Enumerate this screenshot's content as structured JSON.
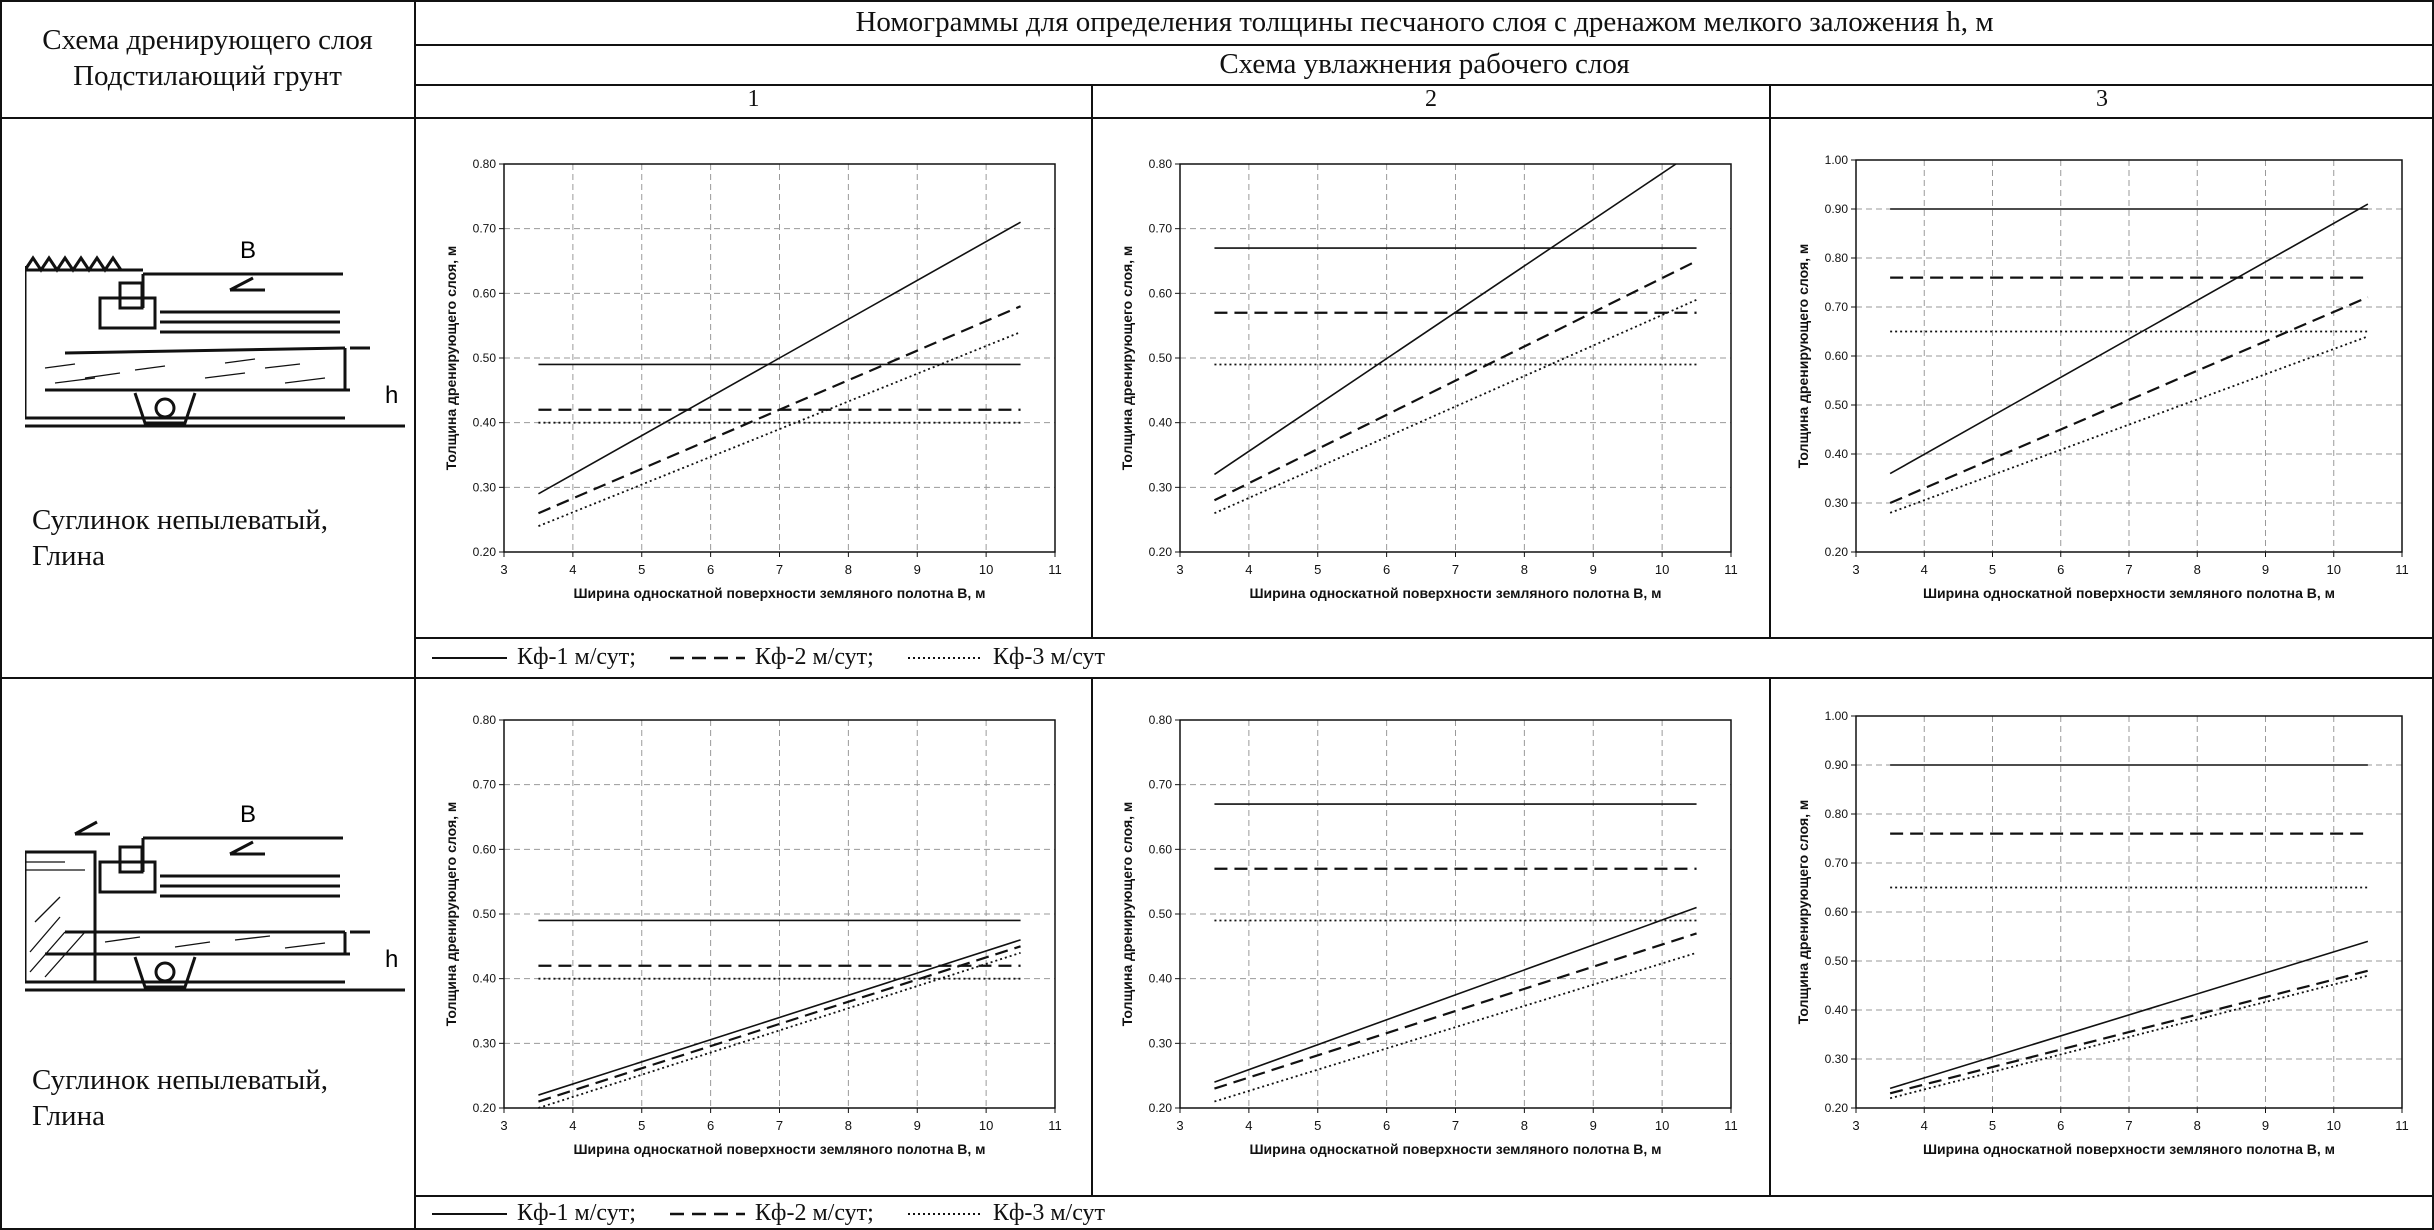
{
  "header": {
    "col_left": [
      "Схема дренирующего слоя",
      "Подстилающий грунт"
    ],
    "title": "Номограммы для определения толщины песчаного слоя с дренажом мелкого заложения h, м",
    "subtitle": "Схема увлажнения рабочего слоя",
    "schemes": [
      "1",
      "2",
      "3"
    ]
  },
  "rows": [
    {
      "soil_lines": [
        "Суглинок непылеватый,",
        "Глина"
      ],
      "diagram": {
        "label_b": "B",
        "label_h": "h"
      },
      "legend": [
        "Кф-1 м/сут;",
        "Кф-2 м/сут;",
        "Кф-3 м/сут"
      ]
    },
    {
      "soil_lines": [
        "Суглинок непылеватый,",
        "Глина"
      ],
      "diagram": {
        "label_b": "B",
        "label_h": "h"
      },
      "legend": [
        "Кф-1 м/сут;",
        "Кф-2 м/сут;",
        "Кф-3 м/сут"
      ]
    }
  ],
  "chart_data": [
    {
      "type": "line",
      "ylabel": "Толщина дренирующего слоя, м",
      "xlabel": "Ширина односкатной поверхности земляного полотна B, м",
      "xlim": [
        3,
        11
      ],
      "ylim": [
        0.2,
        0.8
      ],
      "xticks": [
        "3",
        "4",
        "5",
        "6",
        "7",
        "8",
        "9",
        "10",
        "11"
      ],
      "yticks": [
        "0.20",
        "0.30",
        "0.40",
        "0.50",
        "0.60",
        "0.70",
        "0.80"
      ],
      "grid": true,
      "series": [
        {
          "style": "solid",
          "points": [
            [
              3.5,
              0.49
            ],
            [
              10.5,
              0.49
            ]
          ]
        },
        {
          "style": "dashed",
          "points": [
            [
              3.5,
              0.42
            ],
            [
              10.5,
              0.42
            ]
          ]
        },
        {
          "style": "dotted",
          "points": [
            [
              3.5,
              0.4
            ],
            [
              10.5,
              0.4
            ]
          ]
        },
        {
          "style": "solid",
          "points": [
            [
              3.5,
              0.29
            ],
            [
              10.5,
              0.71
            ]
          ]
        },
        {
          "style": "dashed",
          "points": [
            [
              3.5,
              0.26
            ],
            [
              10.5,
              0.58
            ]
          ]
        },
        {
          "style": "dotted",
          "points": [
            [
              3.5,
              0.24
            ],
            [
              10.5,
              0.54
            ]
          ]
        }
      ]
    },
    {
      "type": "line",
      "ylabel": "Толщина дренирующего слоя, м",
      "xlabel": "Ширина односкатной поверхности земляного полотна B, м",
      "xlim": [
        3,
        11
      ],
      "ylim": [
        0.2,
        0.8
      ],
      "xticks": [
        "3",
        "4",
        "5",
        "6",
        "7",
        "8",
        "9",
        "10",
        "11"
      ],
      "yticks": [
        "0.20",
        "0.30",
        "0.40",
        "0.50",
        "0.60",
        "0.70",
        "0.80"
      ],
      "grid": true,
      "series": [
        {
          "style": "solid",
          "points": [
            [
              3.5,
              0.67
            ],
            [
              10.5,
              0.67
            ]
          ]
        },
        {
          "style": "dashed",
          "points": [
            [
              3.5,
              0.57
            ],
            [
              10.5,
              0.57
            ]
          ]
        },
        {
          "style": "dotted",
          "points": [
            [
              3.5,
              0.49
            ],
            [
              10.5,
              0.49
            ]
          ]
        },
        {
          "style": "solid",
          "points": [
            [
              3.5,
              0.32
            ],
            [
              10.2,
              0.8
            ]
          ]
        },
        {
          "style": "dashed",
          "points": [
            [
              3.5,
              0.28
            ],
            [
              10.5,
              0.65
            ]
          ]
        },
        {
          "style": "dotted",
          "points": [
            [
              3.5,
              0.26
            ],
            [
              10.5,
              0.59
            ]
          ]
        }
      ]
    },
    {
      "type": "line",
      "ylabel": "Толщина дренирующего слоя, м",
      "xlabel": "Ширина односкатной поверхности земляного полотна B, м",
      "xlim": [
        3,
        11
      ],
      "ylim": [
        0.2,
        1.0
      ],
      "xticks": [
        "3",
        "4",
        "5",
        "6",
        "7",
        "8",
        "9",
        "10",
        "11"
      ],
      "yticks": [
        "0.20",
        "0.30",
        "0.40",
        "0.50",
        "0.60",
        "0.70",
        "0.80",
        "0.90",
        "1.00"
      ],
      "grid": true,
      "series": [
        {
          "style": "solid",
          "points": [
            [
              3.5,
              0.9
            ],
            [
              10.5,
              0.9
            ]
          ]
        },
        {
          "style": "dashed",
          "points": [
            [
              3.5,
              0.76
            ],
            [
              10.5,
              0.76
            ]
          ]
        },
        {
          "style": "dotted",
          "points": [
            [
              3.5,
              0.65
            ],
            [
              10.5,
              0.65
            ]
          ]
        },
        {
          "style": "solid",
          "points": [
            [
              3.5,
              0.36
            ],
            [
              10.5,
              0.91
            ]
          ]
        },
        {
          "style": "dashed",
          "points": [
            [
              3.5,
              0.3
            ],
            [
              10.5,
              0.72
            ]
          ]
        },
        {
          "style": "dotted",
          "points": [
            [
              3.5,
              0.28
            ],
            [
              10.5,
              0.64
            ]
          ]
        }
      ]
    },
    {
      "type": "line",
      "ylabel": "Толщина дренирующего слоя, м",
      "xlabel": "Ширина односкатной поверхности земляного полотна B, м",
      "xlim": [
        3,
        11
      ],
      "ylim": [
        0.2,
        0.8
      ],
      "xticks": [
        "3",
        "4",
        "5",
        "6",
        "7",
        "8",
        "9",
        "10",
        "11"
      ],
      "yticks": [
        "0.20",
        "0.30",
        "0.40",
        "0.50",
        "0.60",
        "0.70",
        "0.80"
      ],
      "grid": true,
      "series": [
        {
          "style": "solid",
          "points": [
            [
              3.5,
              0.49
            ],
            [
              10.5,
              0.49
            ]
          ]
        },
        {
          "style": "dashed",
          "points": [
            [
              3.5,
              0.42
            ],
            [
              10.5,
              0.42
            ]
          ]
        },
        {
          "style": "dotted",
          "points": [
            [
              3.5,
              0.4
            ],
            [
              10.5,
              0.4
            ]
          ]
        },
        {
          "style": "solid",
          "points": [
            [
              3.5,
              0.22
            ],
            [
              10.5,
              0.46
            ]
          ]
        },
        {
          "style": "dashed",
          "points": [
            [
              3.5,
              0.21
            ],
            [
              10.5,
              0.45
            ]
          ]
        },
        {
          "style": "dotted",
          "points": [
            [
              3.5,
              0.2
            ],
            [
              10.5,
              0.44
            ]
          ]
        }
      ]
    },
    {
      "type": "line",
      "ylabel": "Толщина дренирующего слоя, м",
      "xlabel": "Ширина односкатной поверхности земляного полотна B, м",
      "xlim": [
        3,
        11
      ],
      "ylim": [
        0.2,
        0.8
      ],
      "xticks": [
        "3",
        "4",
        "5",
        "6",
        "7",
        "8",
        "9",
        "10",
        "11"
      ],
      "yticks": [
        "0.20",
        "0.30",
        "0.40",
        "0.50",
        "0.60",
        "0.70",
        "0.80"
      ],
      "grid": true,
      "series": [
        {
          "style": "solid",
          "points": [
            [
              3.5,
              0.67
            ],
            [
              10.5,
              0.67
            ]
          ]
        },
        {
          "style": "dashed",
          "points": [
            [
              3.5,
              0.57
            ],
            [
              10.5,
              0.57
            ]
          ]
        },
        {
          "style": "dotted",
          "points": [
            [
              3.5,
              0.49
            ],
            [
              10.5,
              0.49
            ]
          ]
        },
        {
          "style": "solid",
          "points": [
            [
              3.5,
              0.24
            ],
            [
              10.5,
              0.51
            ]
          ]
        },
        {
          "style": "dashed",
          "points": [
            [
              3.5,
              0.23
            ],
            [
              10.5,
              0.47
            ]
          ]
        },
        {
          "style": "dotted",
          "points": [
            [
              3.5,
              0.21
            ],
            [
              10.5,
              0.44
            ]
          ]
        }
      ]
    },
    {
      "type": "line",
      "ylabel": "Толщина дренирующего слоя, м",
      "xlabel": "Ширина односкатной поверхности земляного полотна B, м",
      "xlim": [
        3,
        11
      ],
      "ylim": [
        0.2,
        1.0
      ],
      "xticks": [
        "3",
        "4",
        "5",
        "6",
        "7",
        "8",
        "9",
        "10",
        "11"
      ],
      "yticks": [
        "0.20",
        "0.30",
        "0.40",
        "0.50",
        "0.60",
        "0.70",
        "0.80",
        "0.90",
        "1.00"
      ],
      "grid": true,
      "series": [
        {
          "style": "solid",
          "points": [
            [
              3.5,
              0.9
            ],
            [
              10.5,
              0.9
            ]
          ]
        },
        {
          "style": "dashed",
          "points": [
            [
              3.5,
              0.76
            ],
            [
              10.5,
              0.76
            ]
          ]
        },
        {
          "style": "dotted",
          "points": [
            [
              3.5,
              0.65
            ],
            [
              10.5,
              0.65
            ]
          ]
        },
        {
          "style": "solid",
          "points": [
            [
              3.5,
              0.24
            ],
            [
              10.5,
              0.54
            ]
          ]
        },
        {
          "style": "dashed",
          "points": [
            [
              3.5,
              0.23
            ],
            [
              10.5,
              0.48
            ]
          ]
        },
        {
          "style": "dotted",
          "points": [
            [
              3.5,
              0.22
            ],
            [
              10.5,
              0.47
            ]
          ]
        }
      ]
    }
  ]
}
